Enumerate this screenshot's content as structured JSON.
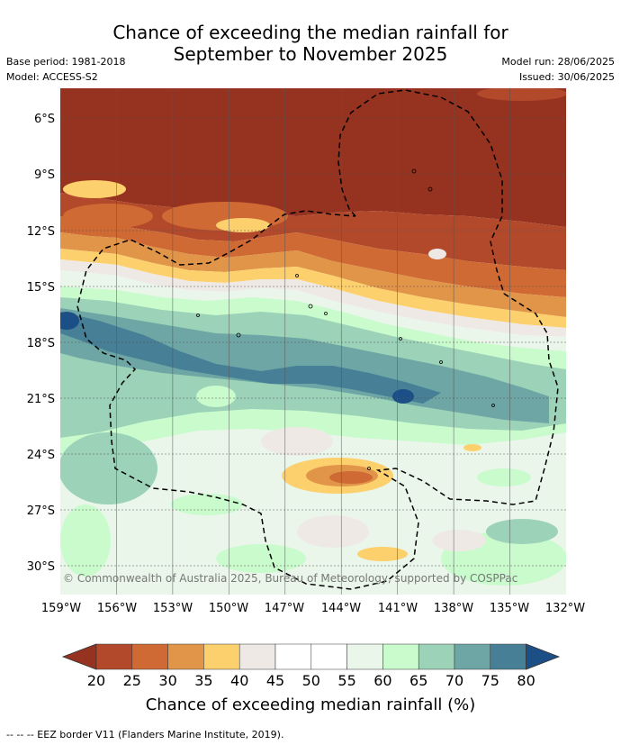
{
  "header": {
    "title_line1": "Chance of exceeding the median rainfall for",
    "title_line2": "September to November 2025",
    "base_period": "Base period: 1981-2018",
    "model": "Model: ACCESS-S2",
    "model_run": "Model run: 28/06/2025",
    "issued": "Issued: 30/06/2025"
  },
  "map": {
    "lat_labels": [
      "6°S",
      "9°S",
      "12°S",
      "15°S",
      "18°S",
      "21°S",
      "24°S",
      "27°S",
      "30°S"
    ],
    "lon_labels": [
      "159°W",
      "156°W",
      "153°W",
      "150°W",
      "147°W",
      "144°W",
      "141°W",
      "138°W",
      "135°W",
      "132°W"
    ],
    "copyright": "© Commonwealth of Australia 2025, Bureau of Meteorology, supported by COSPPac",
    "colors": {
      "lt20": "#963220",
      "c20_25": "#b2492a",
      "c25_30": "#d06a34",
      "c30_35": "#e09548",
      "c35_40": "#fdd06e",
      "c40_45": "#efe9e6",
      "c45_55": "#ffffff",
      "c55_60": "#eaf6ea",
      "c60_65": "#c9fbcd",
      "c65_70": "#9bd2b8",
      "c70_75": "#6da6a4",
      "c75_80": "#467f96",
      "gt80": "#1c4f86"
    }
  },
  "colorbar": {
    "ticks": [
      "20",
      "25",
      "30",
      "35",
      "40",
      "45",
      "50",
      "55",
      "60",
      "65",
      "70",
      "75",
      "80"
    ],
    "title": "Chance of exceeding median rainfall (%)"
  },
  "footer": {
    "eez_legend": "--  --  -- EEZ border V11 (Flanders Marine Institute, 2019)."
  }
}
